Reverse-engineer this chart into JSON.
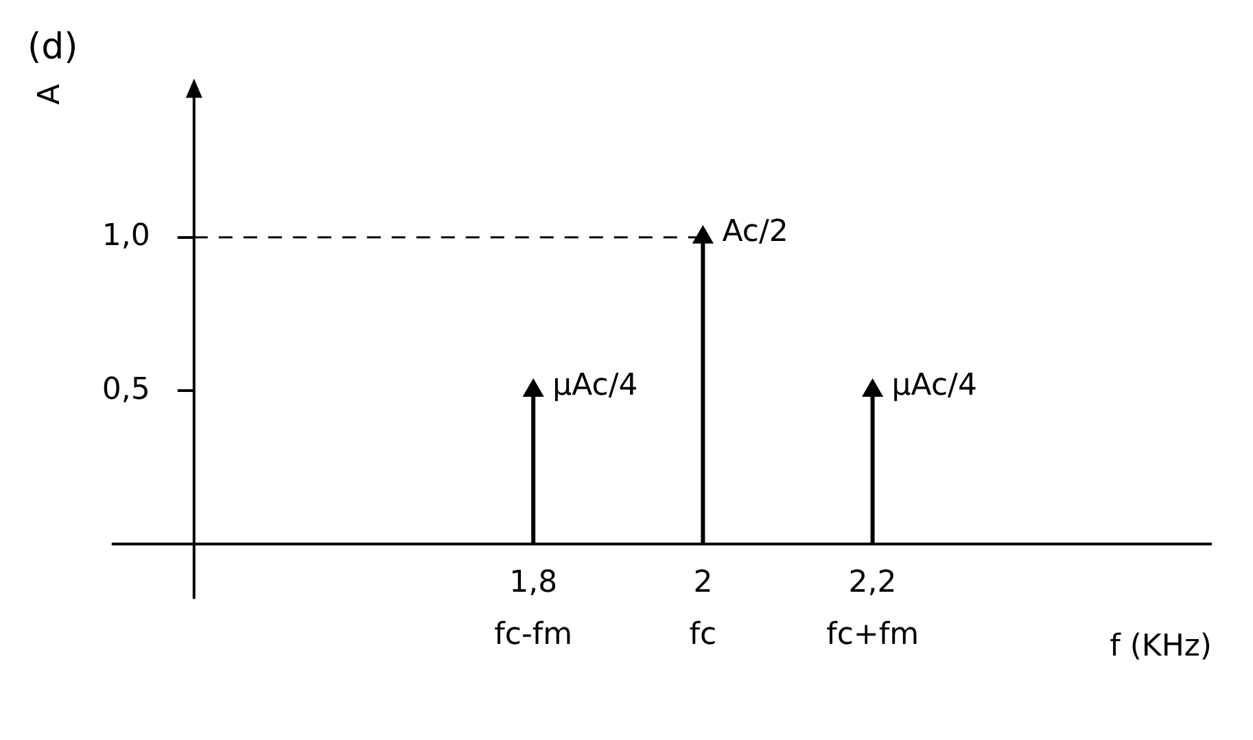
{
  "chart_data": {
    "type": "lollipop",
    "title": "(d)",
    "ylabel": "A",
    "xlabel": "f (KHz)",
    "x": [
      1.8,
      2,
      2.2
    ],
    "values": [
      0.5,
      1,
      0.5
    ],
    "color": "#000000",
    "xlim": [
      1.4,
      2.6
    ],
    "xticks": [
      {
        "value": 1.8,
        "label": "1,8"
      },
      2,
      {
        "value": 2.2,
        "label": "2,2"
      }
    ],
    "ylim": [
      0,
      1.5
    ],
    "yticks": [
      {
        "value": 0.5,
        "label": "0,5"
      },
      {
        "value": 1,
        "label": "1,0"
      }
    ],
    "ref_lines": [
      {
        "axis": "y",
        "value": 1,
        "line_style": "dashed"
      }
    ],
    "annotations": [
      {
        "text": "μAc/4",
        "x": 1.8,
        "y": 0.5
      },
      {
        "text": "Ac/2",
        "x": 2,
        "y": 1
      },
      {
        "text": "μAc/4",
        "x": 2.2,
        "y": 0.5
      },
      "fc-fm",
      "fc",
      "fc+fm"
    ],
    "marker": "triangle",
    "grid": false,
    "legend": false
  }
}
